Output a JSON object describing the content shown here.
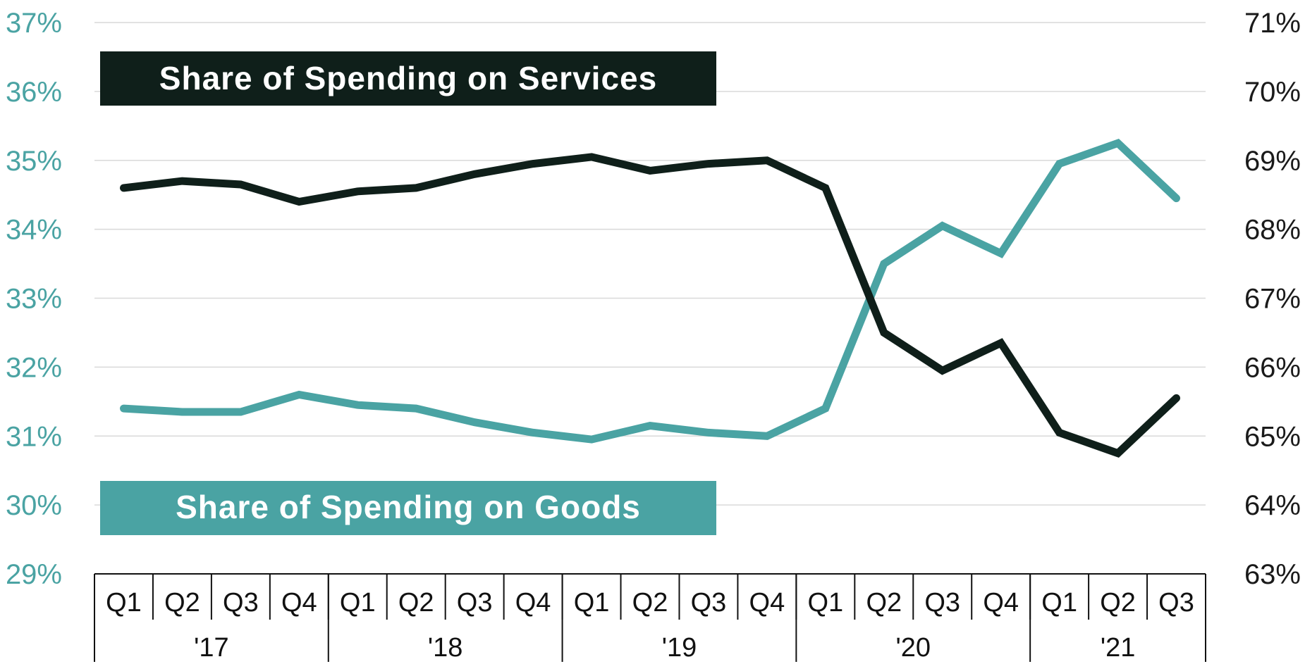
{
  "chart_data": {
    "type": "line",
    "title": "",
    "xlabel": "",
    "ylabel": "",
    "categories": [
      "Q1",
      "Q2",
      "Q3",
      "Q4",
      "Q1",
      "Q2",
      "Q3",
      "Q4",
      "Q1",
      "Q2",
      "Q3",
      "Q4",
      "Q1",
      "Q2",
      "Q3",
      "Q4",
      "Q1",
      "Q2",
      "Q3"
    ],
    "years": [
      {
        "label": "'17",
        "count": 4
      },
      {
        "label": "'18",
        "count": 4
      },
      {
        "label": "'19",
        "count": 4
      },
      {
        "label": "'20",
        "count": 4
      },
      {
        "label": "'21",
        "count": 3
      }
    ],
    "y_left": {
      "min": 29,
      "max": 37,
      "step": 1,
      "suffix": "%",
      "color": "#4aa3a3"
    },
    "y_right": {
      "min": 63,
      "max": 71,
      "step": 1,
      "suffix": "%",
      "color": "#1a1a1a"
    },
    "grid": true,
    "series": [
      {
        "name": "Share of Spending on Services",
        "axis": "right",
        "color": "#0f1f1a",
        "legend_bg": "#0f1f1a",
        "legend_position": "top-left",
        "values": [
          68.6,
          68.7,
          68.65,
          68.4,
          68.55,
          68.6,
          68.8,
          68.95,
          69.05,
          68.85,
          68.95,
          69.0,
          68.6,
          66.5,
          65.95,
          66.35,
          65.05,
          64.75,
          65.55
        ]
      },
      {
        "name": "Share of Spending on Goods",
        "axis": "left",
        "color": "#4aa3a3",
        "legend_bg": "#4aa3a3",
        "legend_position": "bottom-left",
        "values": [
          31.4,
          31.35,
          31.35,
          31.6,
          31.45,
          31.4,
          31.2,
          31.05,
          30.95,
          31.15,
          31.05,
          31.0,
          31.4,
          33.5,
          34.05,
          33.65,
          34.95,
          35.25,
          34.45
        ]
      }
    ]
  }
}
